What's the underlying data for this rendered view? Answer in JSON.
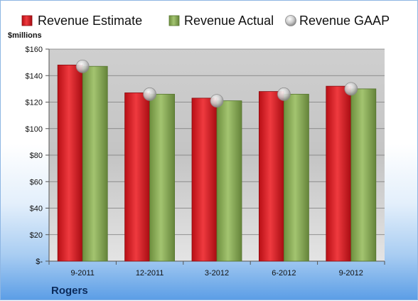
{
  "company": "Rogers",
  "unit_label": "$millions",
  "colors": {
    "estimate": "#d9191f",
    "actual": "#8aac55",
    "gaap": "#c9c9c9",
    "plot_bg": "#cfcfcf"
  },
  "chart_data": {
    "type": "bar",
    "categories": [
      "9-2011",
      "12-2011",
      "3-2012",
      "6-2012",
      "9-2012"
    ],
    "series": [
      {
        "name": "Revenue Estimate",
        "kind": "bar",
        "values": [
          148,
          127,
          123,
          128,
          132
        ]
      },
      {
        "name": "Revenue Actual",
        "kind": "bar",
        "values": [
          147,
          126,
          121,
          126,
          130
        ]
      },
      {
        "name": "Revenue GAAP",
        "kind": "marker",
        "values": [
          147,
          126,
          121,
          126,
          130
        ]
      }
    ],
    "ylim": [
      0,
      160
    ],
    "yticks": [
      0,
      20,
      40,
      60,
      80,
      100,
      120,
      140,
      160
    ],
    "ytick_labels": [
      "$-",
      "$20",
      "$40",
      "$60",
      "$80",
      "$100",
      "$120",
      "$140",
      "$160"
    ],
    "ylabel": "$millions",
    "xlabel": "",
    "legend_position": "top",
    "grid": true
  }
}
